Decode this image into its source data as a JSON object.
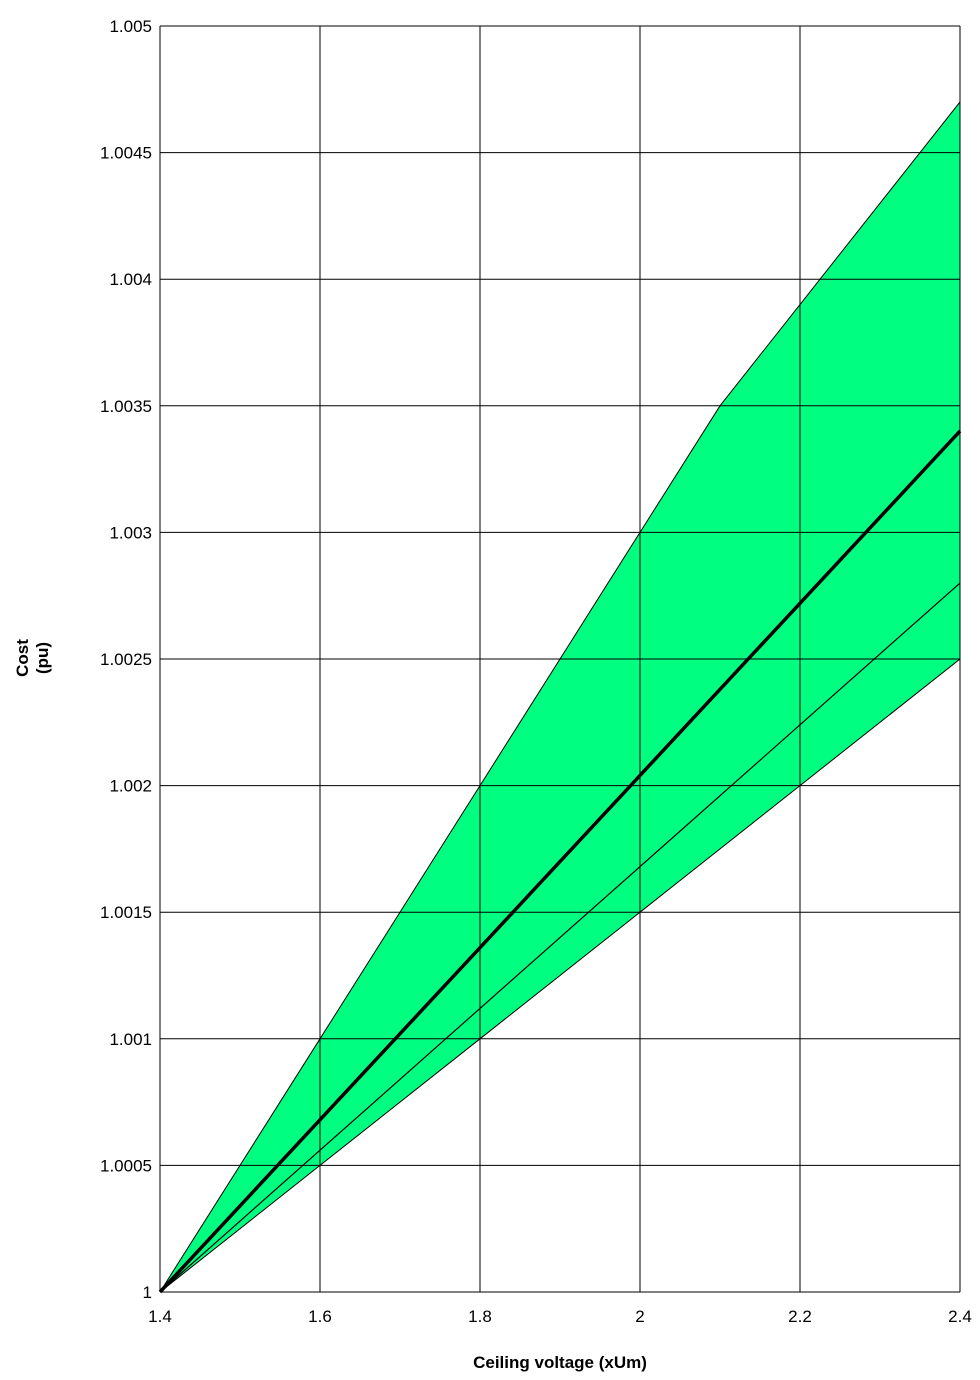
{
  "chart_data": {
    "type": "area",
    "title": "",
    "xlabel": "Ceiling voltage (xUm)",
    "ylabel": [
      "Cost",
      "(pu)"
    ],
    "xlim": [
      1.4,
      2.4
    ],
    "ylim": [
      1.0,
      1.005
    ],
    "grid": true,
    "legend": "none",
    "x_ticks": [
      "1.4",
      "1.6",
      "1.8",
      "2",
      "2.2",
      "2.4"
    ],
    "y_ticks": [
      "1",
      "1.0005",
      "1.001",
      "1.0015",
      "1.002",
      "1.0025",
      "1.003",
      "1.0035",
      "1.004",
      "1.0045",
      "1.005"
    ],
    "band": {
      "color": "#00ff80",
      "upper": {
        "x": [
          1.4,
          1.6,
          1.8,
          2.0,
          2.1,
          2.2,
          2.4
        ],
        "y": [
          1.0,
          1.001,
          1.002,
          1.003,
          1.0035,
          1.0039,
          1.0047
        ]
      },
      "lower": {
        "x": [
          1.4,
          1.6,
          1.8,
          2.0,
          2.2,
          2.4
        ],
        "y": [
          1.0,
          1.0005,
          1.001,
          1.0015,
          1.002,
          1.0025
        ]
      }
    },
    "series": [
      {
        "style": "thick",
        "color": "#000000",
        "x": [
          1.4,
          1.6,
          1.8,
          2.0,
          2.2,
          2.4
        ],
        "y": [
          1.0,
          1.00068,
          1.00136,
          1.00204,
          1.00272,
          1.0034
        ]
      },
      {
        "style": "thin",
        "color": "#000000",
        "x": [
          1.4,
          1.6,
          1.8,
          2.0,
          2.2,
          2.4
        ],
        "y": [
          1.0,
          1.00056,
          1.00112,
          1.00168,
          1.00224,
          1.0028
        ]
      }
    ]
  }
}
